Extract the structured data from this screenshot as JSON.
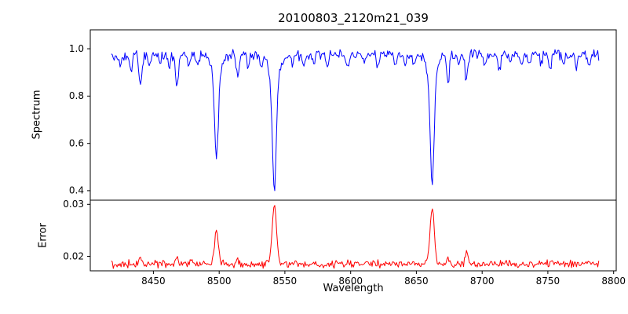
{
  "figure": {
    "title": "20100803_2120m21_039",
    "xlabel": "Wavelength",
    "spectrum_ylabel": "Spectrum",
    "error_ylabel": "Error",
    "background_color": "#ffffff",
    "axis_color": "#000000"
  },
  "chart_data": [
    {
      "type": "line",
      "name": "Spectrum",
      "title": "20100803_2120m21_039",
      "ylabel": "Spectrum",
      "color": "#0000ff",
      "x_start": 8418,
      "x_end": 8789,
      "x_step": 0.74,
      "xlim": [
        8402,
        8802
      ],
      "ylim": [
        0.36,
        1.08
      ],
      "xticks": [
        8450,
        8500,
        8550,
        8600,
        8650,
        8700,
        8750,
        8800
      ],
      "yticks": [
        0.4,
        0.6,
        0.8,
        1.0
      ],
      "continuum_level": 0.975,
      "noise_amplitude": 0.028,
      "absorption_lines": [
        {
          "center": 8425,
          "depth": 0.04,
          "sigma": 1.0
        },
        {
          "center": 8433,
          "depth": 0.06,
          "sigma": 1.0
        },
        {
          "center": 8440,
          "depth": 0.13,
          "sigma": 1.1
        },
        {
          "center": 8447,
          "depth": 0.05,
          "sigma": 0.9
        },
        {
          "center": 8455,
          "depth": 0.04,
          "sigma": 0.9
        },
        {
          "center": 8462,
          "depth": 0.05,
          "sigma": 1.0
        },
        {
          "center": 8468,
          "depth": 0.13,
          "sigma": 1.1
        },
        {
          "center": 8477,
          "depth": 0.05,
          "sigma": 0.9
        },
        {
          "center": 8484,
          "depth": 0.04,
          "sigma": 0.9
        },
        {
          "center": 8498,
          "depth": 0.34,
          "sigma": 1.3
        },
        {
          "center": 8498,
          "depth": 0.1,
          "sigma": 3.5
        },
        {
          "center": 8514,
          "depth": 0.1,
          "sigma": 1.1
        },
        {
          "center": 8522,
          "depth": 0.05,
          "sigma": 0.9
        },
        {
          "center": 8532,
          "depth": 0.04,
          "sigma": 1.0
        },
        {
          "center": 8542,
          "depth": 0.45,
          "sigma": 1.4
        },
        {
          "center": 8542,
          "depth": 0.12,
          "sigma": 4.0
        },
        {
          "center": 8556,
          "depth": 0.04,
          "sigma": 1.0
        },
        {
          "center": 8564,
          "depth": 0.04,
          "sigma": 0.9
        },
        {
          "center": 8572,
          "depth": 0.04,
          "sigma": 0.9
        },
        {
          "center": 8582,
          "depth": 0.05,
          "sigma": 1.0
        },
        {
          "center": 8598,
          "depth": 0.06,
          "sigma": 1.0
        },
        {
          "center": 8611,
          "depth": 0.04,
          "sigma": 0.9
        },
        {
          "center": 8621,
          "depth": 0.06,
          "sigma": 1.0
        },
        {
          "center": 8634,
          "depth": 0.04,
          "sigma": 0.9
        },
        {
          "center": 8642,
          "depth": 0.04,
          "sigma": 0.9
        },
        {
          "center": 8648,
          "depth": 0.05,
          "sigma": 0.9
        },
        {
          "center": 8662,
          "depth": 0.45,
          "sigma": 1.4
        },
        {
          "center": 8662,
          "depth": 0.105,
          "sigma": 3.8
        },
        {
          "center": 8674,
          "depth": 0.13,
          "sigma": 1.1
        },
        {
          "center": 8682,
          "depth": 0.05,
          "sigma": 0.9
        },
        {
          "center": 8688,
          "depth": 0.1,
          "sigma": 1.1
        },
        {
          "center": 8702,
          "depth": 0.05,
          "sigma": 1.0
        },
        {
          "center": 8713,
          "depth": 0.06,
          "sigma": 1.0
        },
        {
          "center": 8722,
          "depth": 0.04,
          "sigma": 0.9
        },
        {
          "center": 8730,
          "depth": 0.04,
          "sigma": 0.9
        },
        {
          "center": 8736,
          "depth": 0.05,
          "sigma": 0.9
        },
        {
          "center": 8745,
          "depth": 0.04,
          "sigma": 0.9
        },
        {
          "center": 8752,
          "depth": 0.05,
          "sigma": 1.0
        },
        {
          "center": 8762,
          "depth": 0.04,
          "sigma": 0.9
        },
        {
          "center": 8772,
          "depth": 0.05,
          "sigma": 1.0
        },
        {
          "center": 8781,
          "depth": 0.04,
          "sigma": 0.9
        }
      ]
    },
    {
      "type": "line",
      "name": "Error",
      "ylabel": "Error",
      "xlabel": "Wavelength",
      "color": "#ff0000",
      "x_start": 8418,
      "x_end": 8789,
      "x_step": 0.74,
      "xlim": [
        8402,
        8802
      ],
      "ylim": [
        0.0172,
        0.0308
      ],
      "xticks": [
        8450,
        8500,
        8550,
        8600,
        8650,
        8700,
        8750,
        8800
      ],
      "yticks": [
        0.02,
        0.03
      ],
      "baseline": 0.0185,
      "noise_amplitude": 0.0009,
      "peaks": [
        {
          "center": 8440,
          "height": 0.0008,
          "sigma": 1.2
        },
        {
          "center": 8468,
          "height": 0.001,
          "sigma": 1.3
        },
        {
          "center": 8498,
          "height": 0.006,
          "sigma": 1.5
        },
        {
          "center": 8514,
          "height": 0.0008,
          "sigma": 1.2
        },
        {
          "center": 8542,
          "height": 0.0112,
          "sigma": 1.7
        },
        {
          "center": 8598,
          "height": 0.0005,
          "sigma": 1.1
        },
        {
          "center": 8662,
          "height": 0.0104,
          "sigma": 1.6
        },
        {
          "center": 8674,
          "height": 0.0012,
          "sigma": 1.3
        },
        {
          "center": 8688,
          "height": 0.0018,
          "sigma": 1.2
        },
        {
          "center": 8752,
          "height": 0.0006,
          "sigma": 1.2
        }
      ]
    }
  ]
}
